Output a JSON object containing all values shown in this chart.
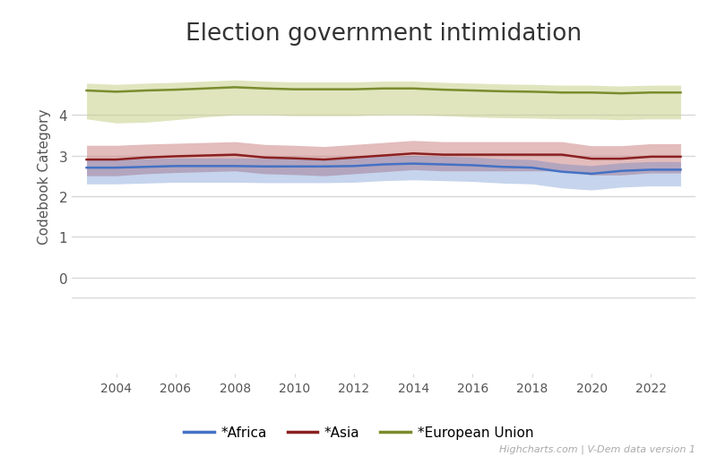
{
  "title": "Election government intimidation",
  "ylabel": "Codebook Category",
  "years": [
    2003,
    2004,
    2005,
    2006,
    2007,
    2008,
    2009,
    2010,
    2011,
    2012,
    2013,
    2014,
    2015,
    2016,
    2017,
    2018,
    2019,
    2020,
    2021,
    2022,
    2023
  ],
  "africa_line": [
    2.7,
    2.7,
    2.72,
    2.74,
    2.74,
    2.74,
    2.73,
    2.73,
    2.73,
    2.74,
    2.78,
    2.8,
    2.78,
    2.76,
    2.72,
    2.7,
    2.6,
    2.55,
    2.62,
    2.65,
    2.65
  ],
  "africa_upper": [
    2.9,
    2.9,
    2.92,
    2.94,
    2.94,
    2.94,
    2.93,
    2.93,
    2.93,
    2.94,
    2.98,
    3.0,
    2.98,
    2.96,
    2.92,
    2.9,
    2.8,
    2.75,
    2.82,
    2.85,
    2.85
  ],
  "africa_lower": [
    2.3,
    2.3,
    2.32,
    2.34,
    2.34,
    2.34,
    2.33,
    2.33,
    2.33,
    2.34,
    2.38,
    2.4,
    2.38,
    2.36,
    2.32,
    2.3,
    2.2,
    2.15,
    2.22,
    2.25,
    2.25
  ],
  "asia_line": [
    2.9,
    2.9,
    2.95,
    2.98,
    3.0,
    3.02,
    2.95,
    2.93,
    2.9,
    2.95,
    3.0,
    3.05,
    3.02,
    3.02,
    3.02,
    3.02,
    3.02,
    2.92,
    2.92,
    2.97,
    2.97
  ],
  "asia_upper": [
    3.25,
    3.25,
    3.28,
    3.3,
    3.32,
    3.34,
    3.27,
    3.25,
    3.22,
    3.27,
    3.32,
    3.37,
    3.34,
    3.34,
    3.34,
    3.34,
    3.34,
    3.24,
    3.24,
    3.29,
    3.29
  ],
  "asia_lower": [
    2.5,
    2.5,
    2.55,
    2.58,
    2.6,
    2.62,
    2.55,
    2.53,
    2.5,
    2.55,
    2.6,
    2.65,
    2.62,
    2.62,
    2.62,
    2.62,
    2.62,
    2.52,
    2.52,
    2.57,
    2.57
  ],
  "eu_line": [
    4.6,
    4.57,
    4.6,
    4.62,
    4.65,
    4.68,
    4.65,
    4.63,
    4.63,
    4.63,
    4.65,
    4.65,
    4.62,
    4.6,
    4.58,
    4.57,
    4.55,
    4.55,
    4.53,
    4.55,
    4.55
  ],
  "eu_upper": [
    4.78,
    4.75,
    4.78,
    4.8,
    4.83,
    4.86,
    4.83,
    4.81,
    4.81,
    4.81,
    4.83,
    4.83,
    4.8,
    4.78,
    4.76,
    4.75,
    4.73,
    4.73,
    4.71,
    4.73,
    4.73
  ],
  "eu_lower": [
    3.9,
    3.8,
    3.82,
    3.88,
    3.95,
    4.0,
    4.0,
    3.98,
    3.98,
    3.98,
    4.0,
    4.0,
    3.98,
    3.95,
    3.93,
    3.92,
    3.9,
    3.9,
    3.88,
    3.9,
    3.9
  ],
  "africa_color": "#4472c4",
  "asia_color": "#8b2020",
  "eu_color": "#7a8c2e",
  "africa_fill": "#4472c4",
  "asia_fill": "#c97a7a",
  "eu_fill": "#c8d08a",
  "bg_color": "#ffffff",
  "grid_color": "#d8d8d8",
  "ylim": [
    -0.5,
    5.5
  ],
  "yticks": [
    0,
    1,
    2,
    3,
    4
  ],
  "watermark": "Highcharts.com | V-Dem data version 1",
  "legend_labels": [
    "*Africa",
    "*Asia",
    "*European Union"
  ],
  "title_fontsize": 19,
  "axis_label_fontsize": 11,
  "xlim_start": 2002.5,
  "xlim_end": 2023.5
}
